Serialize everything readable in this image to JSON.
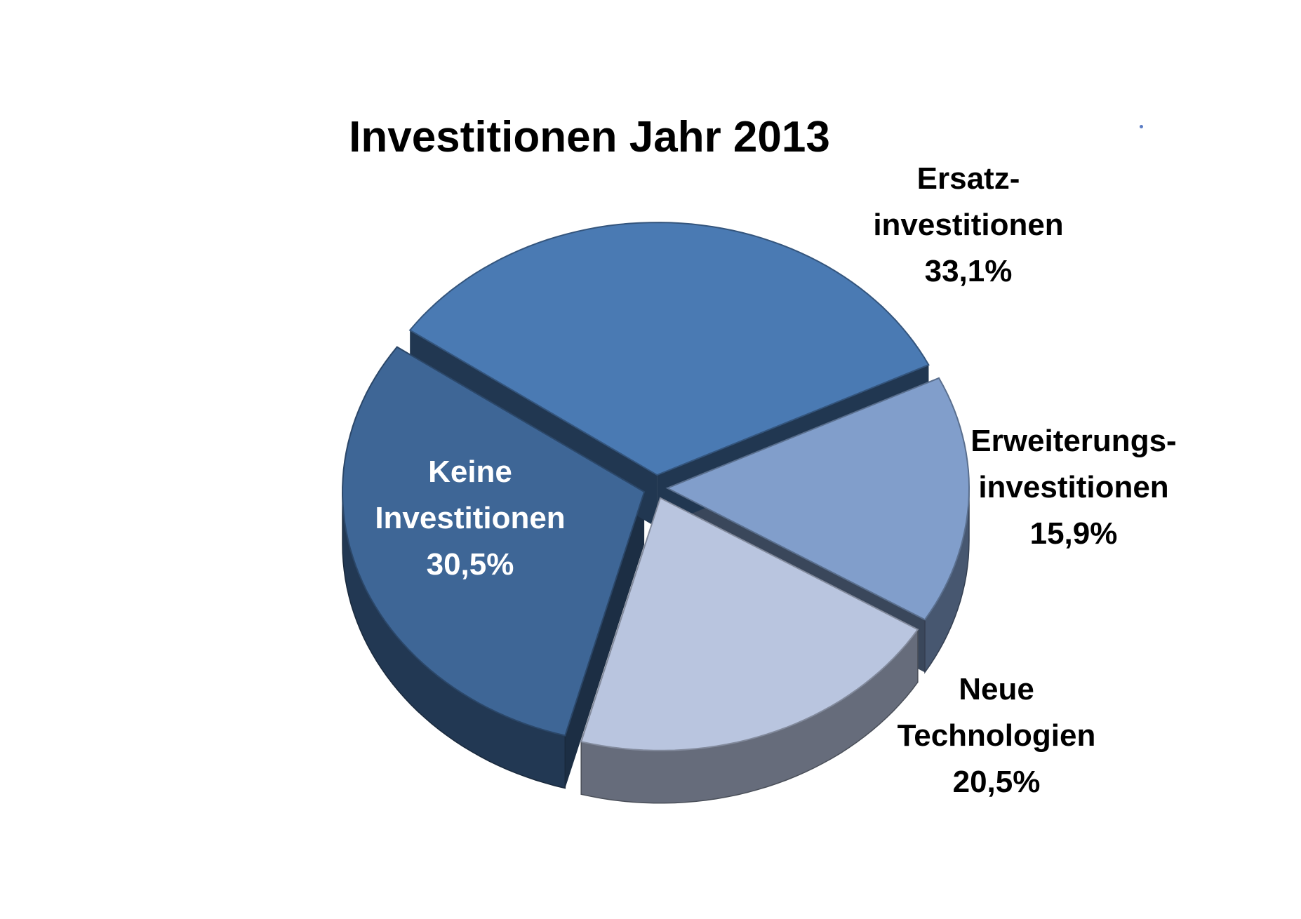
{
  "chart_data": {
    "type": "pie",
    "title": "Investitionen Jahr 2013",
    "slices": [
      {
        "label_lines": [
          "Ersatz-",
          "investitionen"
        ],
        "value": 33.1,
        "value_text": "33,1%",
        "color": "#4a7ab3"
      },
      {
        "label_lines": [
          "Erweiterungs-",
          "investitionen"
        ],
        "value": 15.9,
        "value_text": "15,9%",
        "color": "#819ecb"
      },
      {
        "label_lines": [
          "Neue",
          "Technologien"
        ],
        "value": 20.5,
        "value_text": "20,5%",
        "color": "#b9c5df"
      },
      {
        "label_lines": [
          "Keine",
          "Investitionen"
        ],
        "value": 30.5,
        "value_text": "30,5%",
        "color": "#3e6696"
      }
    ],
    "style": "3d-exploded"
  }
}
